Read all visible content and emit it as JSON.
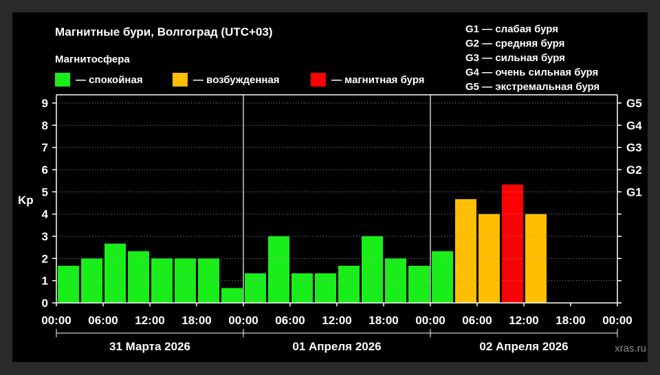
{
  "chart_data": {
    "type": "bar",
    "title": "Магнитные бури, Волгоград (UTC+03)",
    "legend": {
      "heading": "Магнитосфера",
      "items": [
        {
          "label": "— спокойная",
          "color": "#1aee1a"
        },
        {
          "label": "— возбужденная",
          "color": "#ffbf00"
        },
        {
          "label": "— магнитная буря",
          "color": "#ff0000"
        }
      ]
    },
    "storm_scale": [
      "G1 — слабая буря",
      "G2 — средняя буря",
      "G3 — сильная буря",
      "G4 — очень сильная буря",
      "G5 — экстремальная буря"
    ],
    "ylabel": "Kp",
    "ylim": [
      0,
      9
    ],
    "y_ticks": [
      "0",
      "1",
      "2",
      "3",
      "4",
      "5",
      "6",
      "7",
      "8",
      "9"
    ],
    "g_levels": [
      {
        "label": "G1",
        "kp": 5
      },
      {
        "label": "G2",
        "kp": 6
      },
      {
        "label": "G3",
        "kp": 7
      },
      {
        "label": "G4",
        "kp": 8
      },
      {
        "label": "G5",
        "kp": 9
      }
    ],
    "x_ticks": [
      "00:00",
      "06:00",
      "12:00",
      "18:00",
      "00:00",
      "06:00",
      "12:00",
      "18:00",
      "00:00",
      "06:00",
      "12:00",
      "18:00",
      "00:00"
    ],
    "days": [
      "31 Марта 2026",
      "01 Апреля 2026",
      "02 Апреля 2026"
    ],
    "series": [
      {
        "values": [
          1.67,
          2.0,
          2.67,
          2.33,
          2.0,
          2.0,
          2.0,
          0.67,
          1.33,
          3.0,
          1.33,
          1.33,
          1.67,
          3.0,
          2.0,
          1.67,
          2.33,
          4.67,
          4.0,
          5.33,
          4.0
        ]
      }
    ],
    "interval_hours": 3,
    "colors": {
      "quiet": "#1aee1a",
      "active": "#ffbf00",
      "storm": "#ff0000",
      "axis": "#ffffff",
      "background": "#000000"
    }
  },
  "watermark": "xras.ru"
}
